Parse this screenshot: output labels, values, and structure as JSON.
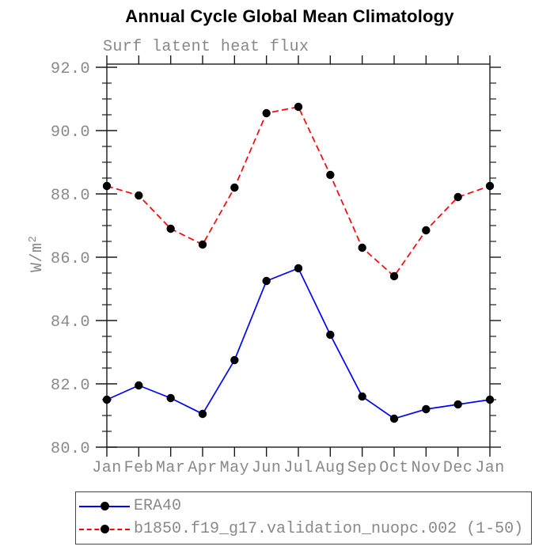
{
  "header": {
    "title": "Annual Cycle Global Mean Climatology",
    "subtitle": "Surf latent heat flux"
  },
  "colors": {
    "background": "#ffffff",
    "axis": "#1a1a1a",
    "label_gray": "#888888",
    "legend_border": "#444444",
    "era40_line": "#0000ff",
    "model_line": "#ff0000",
    "marker": "#000000",
    "title_text": "#000000"
  },
  "chart_data": {
    "type": "line",
    "title": "Annual Cycle Global Mean Climatology",
    "subtitle": "Surf latent heat flux",
    "xlabel": "",
    "ylabel": "W/m²",
    "categories": [
      "Jan",
      "Feb",
      "Mar",
      "Apr",
      "May",
      "Jun",
      "Jul",
      "Aug",
      "Sep",
      "Oct",
      "Nov",
      "Dec",
      "Jan"
    ],
    "ylim": [
      80.0,
      92.0
    ],
    "yticks": [
      80.0,
      82.0,
      84.0,
      86.0,
      88.0,
      90.0,
      92.0
    ],
    "ytick_labels": [
      "80.0",
      "82.0",
      "84.0",
      "86.0",
      "88.0",
      "90.0",
      "92.0"
    ],
    "yminor_step": 0.5,
    "grid": false,
    "legend_position": "bottom-left",
    "series": [
      {
        "name": "ERA40",
        "color": "#0000ff",
        "line_style": "solid",
        "marker": "filled-circle",
        "marker_color": "#000000",
        "values": [
          81.5,
          81.95,
          81.55,
          81.05,
          82.75,
          85.25,
          85.65,
          83.55,
          81.6,
          80.9,
          81.2,
          81.35,
          81.5
        ]
      },
      {
        "name": "b1850.f19_g17.validation_nuopc.002 (1-50)",
        "color": "#ff0000",
        "line_style": "dashed",
        "marker": "filled-circle",
        "marker_color": "#000000",
        "values": [
          88.25,
          87.95,
          86.9,
          86.4,
          88.2,
          90.55,
          90.75,
          88.6,
          86.3,
          85.4,
          86.85,
          87.9,
          88.25
        ]
      }
    ]
  }
}
